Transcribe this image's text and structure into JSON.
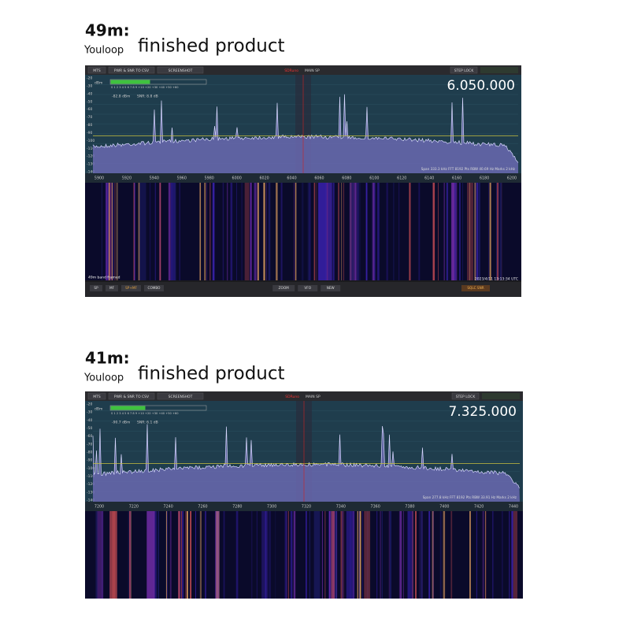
{
  "panels": [
    {
      "band": "49m:",
      "brand": "Youloop",
      "caption": "finished product",
      "toolbar": [
        "MTS",
        "PWR & SNR TO CSV",
        "SCREENSHOT"
      ],
      "app_title": "SDRuno",
      "mode": "MAIN SP",
      "step_lock": "STEP LOCK",
      "frequency": "6.050.000",
      "dbm_unit": "dBm",
      "dbm_labels": [
        "-20",
        "-30",
        "-40",
        "-50",
        "-60",
        "-70",
        "-80",
        "-90",
        "-100",
        "-110",
        "-120",
        "-130",
        "-140"
      ],
      "smeter_scale": "S  1  2  3  4  5  6  7  8  9  +10  +20  +30  +40  +50  +60",
      "level": "-82.8 dBm",
      "snr": "SNR: 8.8 dB",
      "span_info": "Span 333.3 kHz   FFT 8192 Pts   RBW 40.69 Hz   Marks 2 kHz",
      "freq_labels": [
        "5900",
        "5920",
        "5940",
        "5960",
        "5980",
        "6000",
        "6020",
        "6040",
        "6060",
        "6080",
        "6100",
        "6120",
        "6140",
        "6160",
        "6180",
        "6200"
      ],
      "status": "49m band framed",
      "timestamp": "2023/4/11 13:13:34 UTC",
      "bottom_left": [
        "SP",
        "MF",
        "SP+MF",
        "COMBO"
      ],
      "bottom_center": [
        "ZOOM",
        "VFO",
        "NEW"
      ],
      "bottom_right": "SQLC SNR"
    },
    {
      "band": "41m:",
      "brand": "Youloop",
      "caption": "finished product",
      "toolbar": [
        "MTS",
        "PWR & SNR TO CSV",
        "SCREENSHOT"
      ],
      "app_title": "SDRuno",
      "mode": "MAIN SP",
      "step_lock": "STEP LOCK",
      "frequency": "7.325.000",
      "dbm_unit": "dBm",
      "dbm_labels": [
        "-20",
        "-30",
        "-40",
        "-50",
        "-60",
        "-70",
        "-80",
        "-90",
        "-100",
        "-110",
        "-120",
        "-130",
        "-140"
      ],
      "smeter_scale": "S  1  2  3  4  5  6  7  8  9  +10  +20  +30  +40  +50  +60",
      "level": "-90.7 dBm",
      "snr": "SNR: 6.1 dB",
      "span_info": "Span 277.8 kHz   FFT 8192 Pts   RBW 33.91 Hz   Marks 2 kHz",
      "freq_labels": [
        "7200",
        "7220",
        "7240",
        "7260",
        "7280",
        "7300",
        "7320",
        "7340",
        "7360",
        "7380",
        "7400",
        "7420",
        "7440"
      ]
    }
  ]
}
